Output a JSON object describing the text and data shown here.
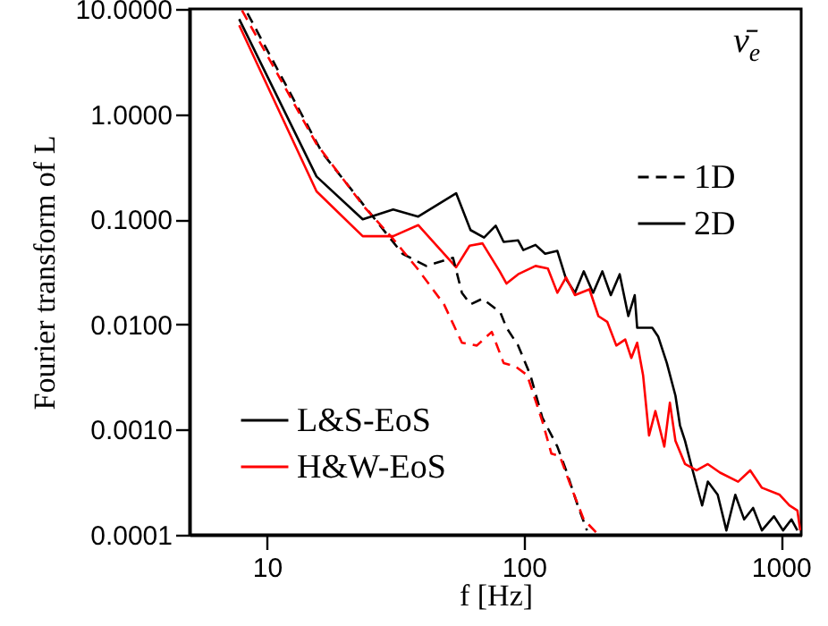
{
  "chart_data": {
    "type": "line",
    "xlabel": "f [Hz]",
    "ylabel": "Fourier transform of L",
    "log": "xy",
    "xlim": [
      5,
      1200
    ],
    "ylim": [
      0.0001,
      10
    ],
    "xticks": [
      10,
      100,
      1000
    ],
    "yticks": [
      {
        "value": 0.0001,
        "label": "0.0001"
      },
      {
        "value": 0.001,
        "label": "0.0010"
      },
      {
        "value": 0.01,
        "label": "0.0100"
      },
      {
        "value": 0.1,
        "label": "0.1000"
      },
      {
        "value": 1,
        "label": "1.0000"
      },
      {
        "value": 10,
        "label": "10.0000"
      }
    ],
    "legend": "bottom left",
    "annotations": [
      "ν̄$_{e}$",
      "1D",
      "2D"
    ],
    "series": [
      {
        "name": "L&S-EoS",
        "color": "#000000",
        "line_style": "solid",
        "x": [
          7.8,
          15.6,
          23.6,
          31,
          38.8,
          54.5,
          62,
          70,
          77.7,
          83.4,
          95,
          99.5,
          111,
          121,
          135,
          146,
          158,
          171,
          186,
          202,
          218,
          236,
          255,
          270,
          276,
          316,
          333,
          360,
          389,
          405,
          424,
          447,
          494,
          520,
          568,
          614,
          665,
          720,
          780,
          844,
          940,
          1020,
          1100,
          1160
        ],
        "values": [
          8.0,
          0.255,
          0.1,
          0.124,
          0.106,
          0.177,
          0.079,
          0.067,
          0.087,
          0.061,
          0.063,
          0.051,
          0.057,
          0.047,
          0.05,
          0.027,
          0.02,
          0.032,
          0.02,
          0.032,
          0.019,
          0.03,
          0.012,
          0.019,
          0.0093,
          0.0093,
          0.0077,
          0.0043,
          0.0021,
          0.0011,
          0.00078,
          0.00047,
          0.00019,
          0.00032,
          0.00024,
          0.00011,
          0.00024,
          0.00014,
          0.00018,
          0.00011,
          0.00015,
          0.00011,
          0.00014,
          0.00011
        ]
      },
      {
        "name": "H&W-EoS",
        "color": "#ff0000",
        "line_style": "solid",
        "x": [
          7.8,
          15.6,
          23.6,
          31,
          38.8,
          54.5,
          61.5,
          69,
          80.5,
          85.6,
          95,
          111,
          124,
          135,
          146,
          158,
          180,
          195,
          211,
          229,
          248,
          262,
          276,
          291,
          307,
          325,
          352,
          370,
          389,
          424,
          470,
          520,
          580,
          682,
          760,
          844,
          990,
          1080,
          1160,
          1190
        ],
        "values": [
          7.0,
          0.184,
          0.069,
          0.069,
          0.088,
          0.035,
          0.056,
          0.059,
          0.032,
          0.0245,
          0.03,
          0.036,
          0.034,
          0.02,
          0.028,
          0.019,
          0.0216,
          0.012,
          0.0106,
          0.0063,
          0.0072,
          0.0048,
          0.0067,
          0.0033,
          0.00088,
          0.0015,
          0.00069,
          0.0018,
          0.00078,
          0.00047,
          0.00041,
          0.00047,
          0.00039,
          0.00032,
          0.00041,
          0.00028,
          0.00024,
          0.00019,
          0.00017,
          0.00011
        ]
      },
      {
        "color": "#000000",
        "line_style": "dashed",
        "x": [
          8.4,
          16.4,
          24.5,
          33.7,
          41.7,
          53,
          57.4,
          62,
          69,
          81,
          85.6,
          95,
          106,
          118,
          135,
          146,
          162,
          176
        ],
        "values": [
          9.1,
          0.43,
          0.125,
          0.047,
          0.036,
          0.043,
          0.02,
          0.0155,
          0.0176,
          0.013,
          0.0093,
          0.0063,
          0.0033,
          0.0013,
          0.00069,
          0.00041,
          0.00019,
          0.00011
        ]
      },
      {
        "color": "#ff0000",
        "line_style": "dashed",
        "x": [
          8.0,
          15.6,
          23.8,
          31,
          38.5,
          48.9,
          57.4,
          65.6,
          75,
          83.4,
          92.6,
          103,
          118,
          128,
          138,
          154,
          171,
          195
        ],
        "values": [
          9.7,
          0.52,
          0.133,
          0.065,
          0.034,
          0.0155,
          0.0067,
          0.0063,
          0.0085,
          0.0043,
          0.004,
          0.0033,
          0.0012,
          0.00059,
          0.00056,
          0.00027,
          0.00014,
          0.0001
        ]
      }
    ]
  }
}
